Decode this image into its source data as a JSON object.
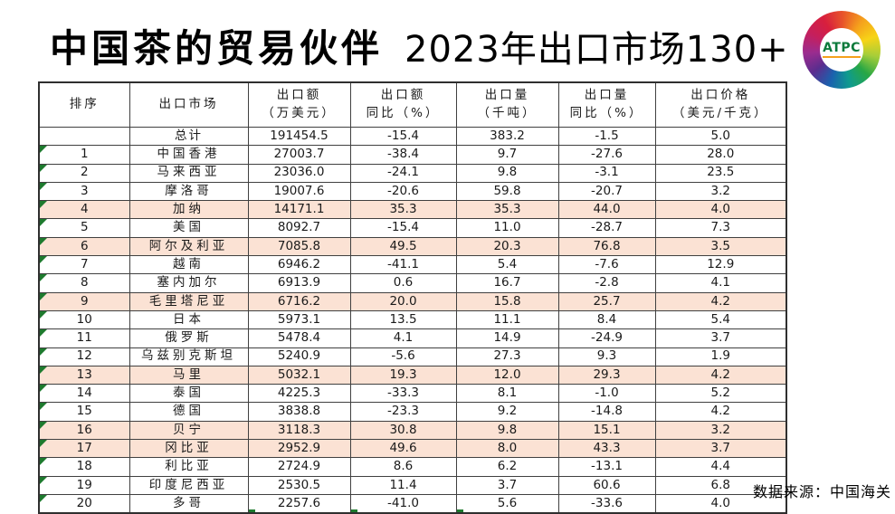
{
  "slide": {
    "title_main": "中国茶的贸易伙伴",
    "title_sub": "2023年出口市场130+",
    "logo_text": "ATPC",
    "source_note": "数据来源：中国海关"
  },
  "colors": {
    "highlight": "#fbe2d4",
    "marker_green": "#1e7a2e",
    "logo_green": "#0c7a3b"
  },
  "table": {
    "columns": [
      {
        "id": "rank",
        "line1": "排序",
        "line2": ""
      },
      {
        "id": "market",
        "line1": "出口市场",
        "line2": ""
      },
      {
        "id": "export_value",
        "line1": "出口额",
        "line2": "（万美元）"
      },
      {
        "id": "value_yoy",
        "line1": "出口额",
        "line2": "同比（%）"
      },
      {
        "id": "export_volume",
        "line1": "出口量",
        "line2": "（千吨）"
      },
      {
        "id": "volume_yoy",
        "line1": "出口量",
        "line2": "同比（%）"
      },
      {
        "id": "price",
        "line1": "出口价格",
        "line2": "（美元/千克）"
      }
    ],
    "rows": [
      {
        "rank": "",
        "market": "总计",
        "values": [
          "191454.5",
          "-15.4",
          "383.2",
          "-1.5",
          "5.0"
        ],
        "highlight": false,
        "is_total": true,
        "corner_marker": false
      },
      {
        "rank": "1",
        "market": "中国香港",
        "values": [
          "27003.7",
          "-38.4",
          "9.7",
          "-27.6",
          "28.0"
        ],
        "highlight": false,
        "is_total": false,
        "corner_marker": true
      },
      {
        "rank": "2",
        "market": "马来西亚",
        "values": [
          "23036.0",
          "-24.1",
          "9.8",
          "-3.1",
          "23.5"
        ],
        "highlight": false,
        "is_total": false,
        "corner_marker": true
      },
      {
        "rank": "3",
        "market": "摩洛哥",
        "values": [
          "19007.6",
          "-20.6",
          "59.8",
          "-20.7",
          "3.2"
        ],
        "highlight": false,
        "is_total": false,
        "corner_marker": true
      },
      {
        "rank": "4",
        "market": "加纳",
        "values": [
          "14171.1",
          "35.3",
          "35.3",
          "44.0",
          "4.0"
        ],
        "highlight": true,
        "is_total": false,
        "corner_marker": true
      },
      {
        "rank": "5",
        "market": "美国",
        "values": [
          "8092.7",
          "-15.4",
          "11.0",
          "-28.7",
          "7.3"
        ],
        "highlight": false,
        "is_total": false,
        "corner_marker": true
      },
      {
        "rank": "6",
        "market": "阿尔及利亚",
        "values": [
          "7085.8",
          "49.5",
          "20.3",
          "76.8",
          "3.5"
        ],
        "highlight": true,
        "is_total": false,
        "corner_marker": true
      },
      {
        "rank": "7",
        "market": "越南",
        "values": [
          "6946.2",
          "-41.1",
          "5.4",
          "-7.6",
          "12.9"
        ],
        "highlight": false,
        "is_total": false,
        "corner_marker": true
      },
      {
        "rank": "8",
        "market": "塞内加尔",
        "values": [
          "6913.9",
          "0.6",
          "16.7",
          "-2.8",
          "4.1"
        ],
        "highlight": false,
        "is_total": false,
        "corner_marker": true
      },
      {
        "rank": "9",
        "market": "毛里塔尼亚",
        "values": [
          "6716.2",
          "20.0",
          "15.8",
          "25.7",
          "4.2"
        ],
        "highlight": true,
        "is_total": false,
        "corner_marker": true
      },
      {
        "rank": "10",
        "market": "日本",
        "values": [
          "5973.1",
          "13.5",
          "11.1",
          "8.4",
          "5.4"
        ],
        "highlight": false,
        "is_total": false,
        "corner_marker": true
      },
      {
        "rank": "11",
        "market": "俄罗斯",
        "values": [
          "5478.4",
          "4.1",
          "14.9",
          "-24.9",
          "3.7"
        ],
        "highlight": false,
        "is_total": false,
        "corner_marker": true
      },
      {
        "rank": "12",
        "market": "乌兹别克斯坦",
        "values": [
          "5240.9",
          "-5.6",
          "27.3",
          "9.3",
          "1.9"
        ],
        "highlight": false,
        "is_total": false,
        "corner_marker": true
      },
      {
        "rank": "13",
        "market": "马里",
        "values": [
          "5032.1",
          "19.3",
          "12.0",
          "29.3",
          "4.2"
        ],
        "highlight": true,
        "is_total": false,
        "corner_marker": true
      },
      {
        "rank": "14",
        "market": "泰国",
        "values": [
          "4225.3",
          "-33.3",
          "8.1",
          "-1.0",
          "5.2"
        ],
        "highlight": false,
        "is_total": false,
        "corner_marker": true
      },
      {
        "rank": "15",
        "market": "德国",
        "values": [
          "3838.8",
          "-23.3",
          "9.2",
          "-14.8",
          "4.2"
        ],
        "highlight": false,
        "is_total": false,
        "corner_marker": true
      },
      {
        "rank": "16",
        "market": "贝宁",
        "values": [
          "3118.3",
          "30.8",
          "9.8",
          "15.1",
          "3.2"
        ],
        "highlight": true,
        "is_total": false,
        "corner_marker": true
      },
      {
        "rank": "17",
        "market": "冈比亚",
        "values": [
          "2952.9",
          "49.6",
          "8.0",
          "43.3",
          "3.7"
        ],
        "highlight": true,
        "is_total": false,
        "corner_marker": true
      },
      {
        "rank": "18",
        "market": "利比亚",
        "values": [
          "2724.9",
          "8.6",
          "6.2",
          "-13.1",
          "4.4"
        ],
        "highlight": false,
        "is_total": false,
        "corner_marker": true
      },
      {
        "rank": "19",
        "market": "印度尼西亚",
        "values": [
          "2530.5",
          "11.4",
          "3.7",
          "60.6",
          "6.8"
        ],
        "highlight": false,
        "is_total": false,
        "corner_marker": true
      },
      {
        "rank": "20",
        "market": "多哥",
        "values": [
          "2257.6",
          "-41.0",
          "5.6",
          "-33.6",
          "4.0"
        ],
        "highlight": false,
        "is_total": false,
        "corner_marker": true
      }
    ]
  }
}
